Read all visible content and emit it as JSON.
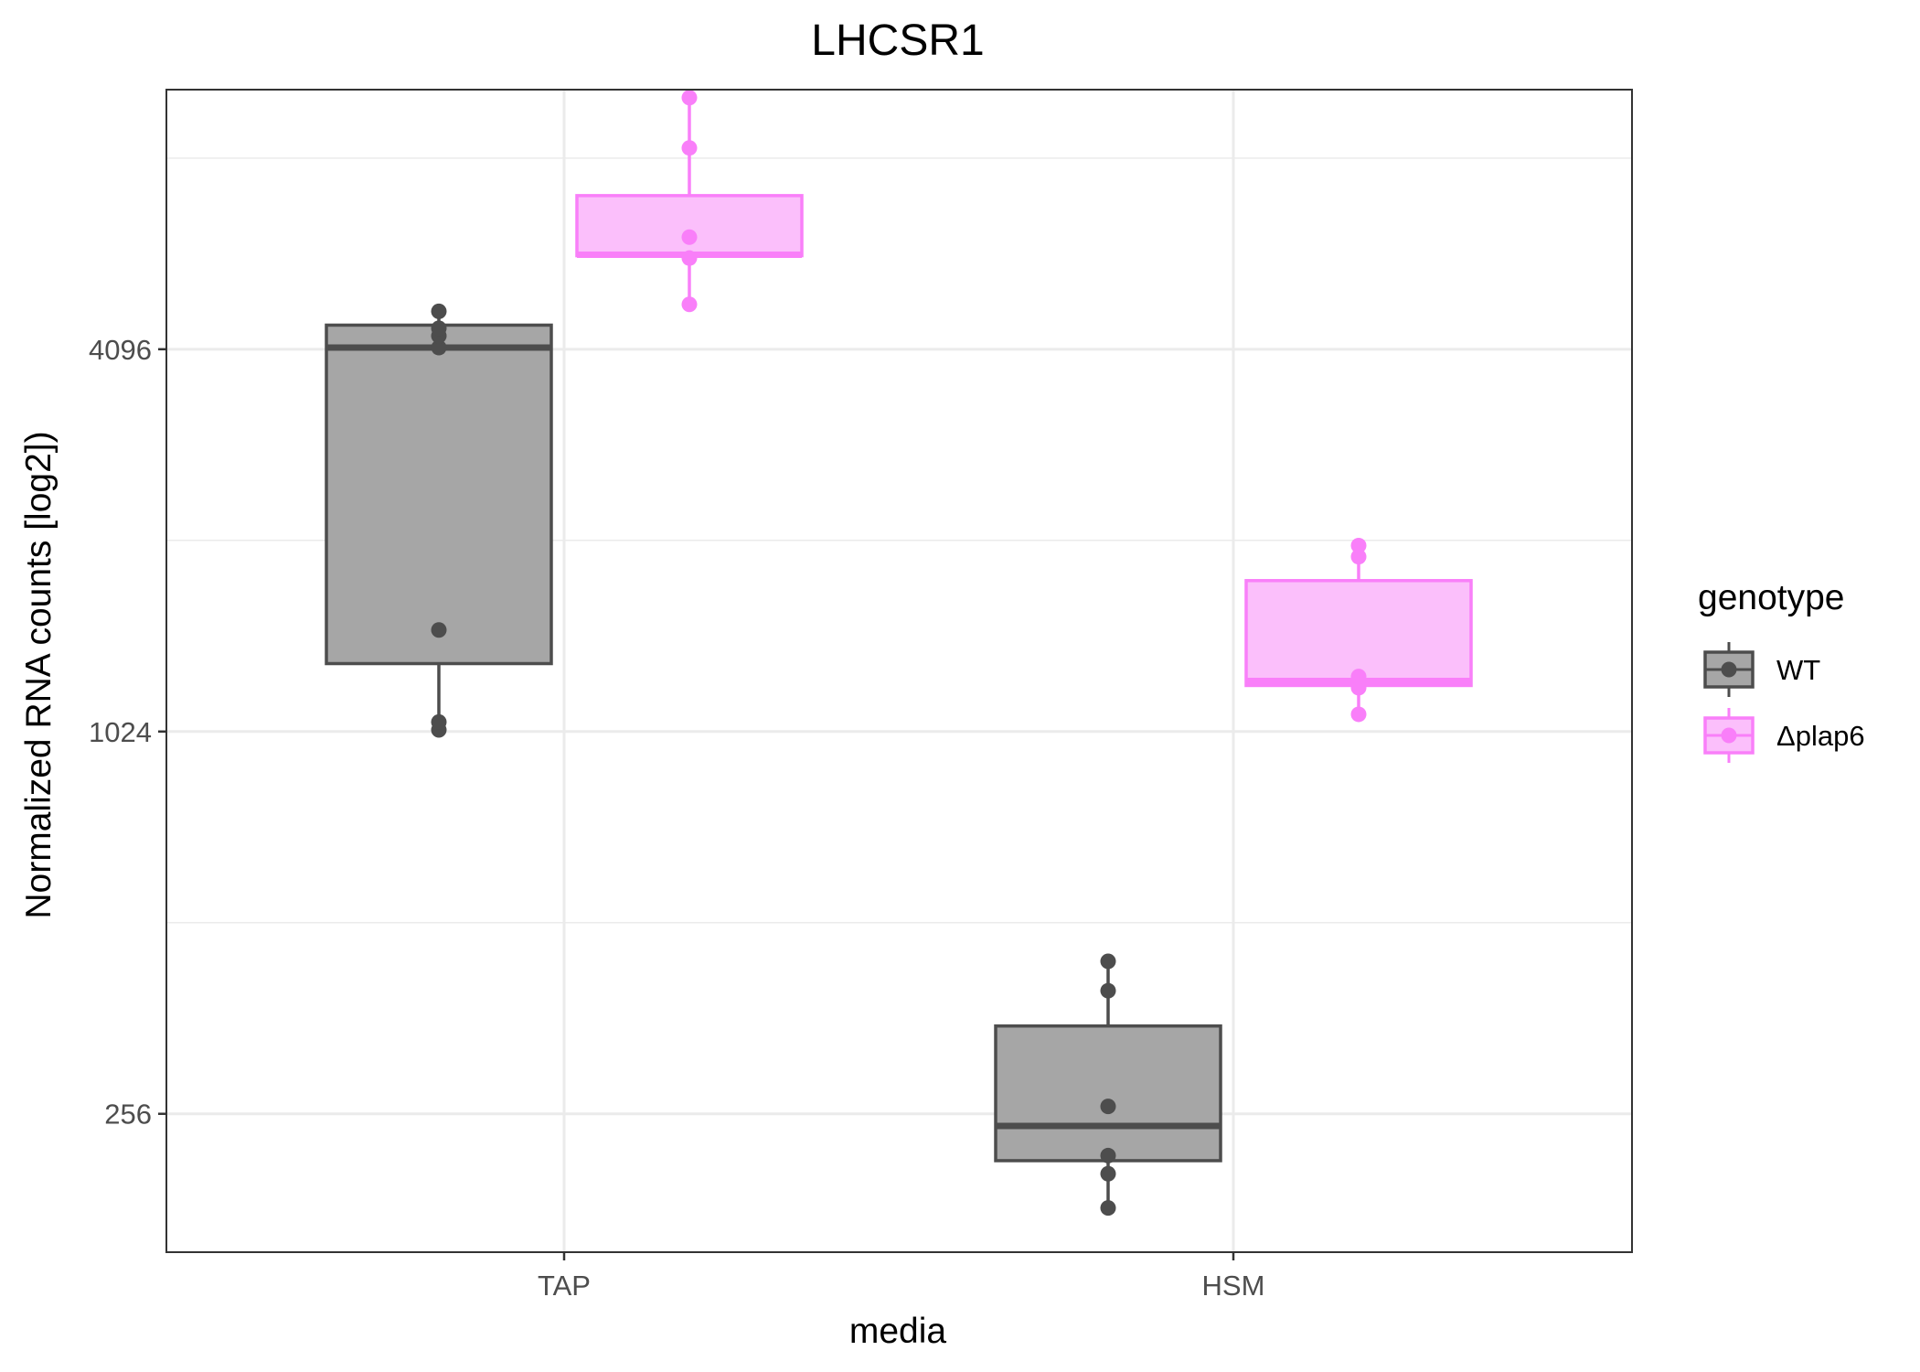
{
  "chart_data": {
    "type": "box",
    "title": "LHCSR1",
    "xlabel": "media",
    "ylabel": "Normalized RNA counts [log2])",
    "y_scale": "log2",
    "ylim": [
      155,
      10500
    ],
    "y_ticks": [
      256,
      1024,
      4096
    ],
    "y_tick_labels": [
      "256",
      "1024",
      "4096"
    ],
    "categories": [
      "TAP",
      "HSM"
    ],
    "legend": {
      "title": "genotype",
      "position": "right"
    },
    "grid": true,
    "series": [
      {
        "name": "WT",
        "color": "#4d4d4d",
        "fill": "#a6a6a6",
        "boxes": [
          {
            "category": "TAP",
            "whisker_low": 1030,
            "q1": 1310,
            "median": 4120,
            "q3": 4470,
            "whisker_high": 4700,
            "points": [
              1030,
              1060,
              1480,
              4120,
              4300,
              4420,
              4700
            ]
          },
          {
            "category": "HSM",
            "whisker_low": 182,
            "q1": 216,
            "median": 245,
            "q3": 352,
            "whisker_high": 445,
            "points": [
              182,
              206,
              220,
              263,
              400,
              445
            ]
          }
        ]
      },
      {
        "name": "Δplap6",
        "color": "#f97ff9",
        "fill": "#fbbffb",
        "boxes": [
          {
            "category": "TAP",
            "whisker_low": 4820,
            "q1": 5750,
            "median": 5770,
            "q3": 7150,
            "whisker_high": 10200,
            "points": [
              4820,
              5700,
              6150,
              8500,
              10200
            ]
          },
          {
            "category": "HSM",
            "whisker_low": 1090,
            "q1": 1210,
            "median": 1230,
            "q3": 1770,
            "whisker_high": 2010,
            "points": [
              1090,
              1200,
              1250,
              1930,
              2010
            ]
          }
        ]
      }
    ]
  }
}
